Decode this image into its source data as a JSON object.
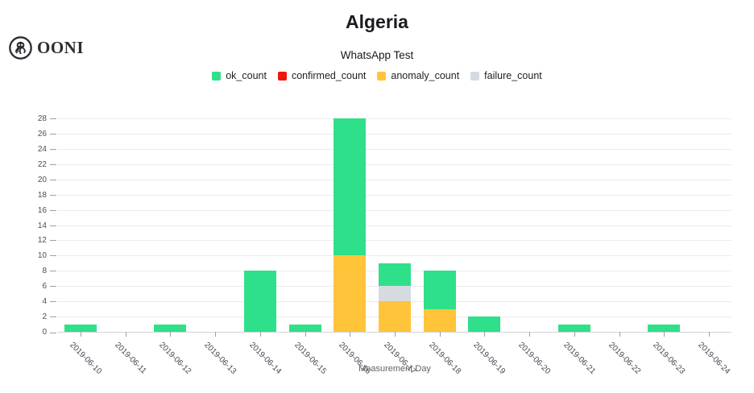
{
  "header": {
    "logo_text": "OONI",
    "title": "Algeria",
    "subtitle": "WhatsApp Test"
  },
  "colors": {
    "ok": "#2fe08a",
    "confirmed": "#f2140d",
    "anomaly": "#ffc43a",
    "failure": "#d6dbe1",
    "gridline": "#ebebeb",
    "axis": "#d3d3d3"
  },
  "legend": [
    {
      "label": "ok_count",
      "color": "#2fe08a"
    },
    {
      "label": "confirmed_count",
      "color": "#f2140d"
    },
    {
      "label": "anomaly_count",
      "color": "#ffc43a"
    },
    {
      "label": "failure_count",
      "color": "#d6dbe1"
    }
  ],
  "chart_data": {
    "type": "bar",
    "stacked": true,
    "title": "Algeria",
    "subtitle": "WhatsApp Test",
    "xlabel": "Measurement Day",
    "ylabel": "",
    "ylim": [
      0,
      28.8
    ],
    "y_ticks": [
      0,
      2,
      4,
      6,
      8,
      10,
      12,
      14,
      16,
      18,
      20,
      22,
      24,
      26,
      28
    ],
    "grid": true,
    "legend_position": "top",
    "categories": [
      "2019-06-10",
      "2019-06-11",
      "2019-06-12",
      "2019-06-13",
      "2019-06-14",
      "2019-06-15",
      "2019-06-16",
      "2019-06-17",
      "2019-06-18",
      "2019-06-19",
      "2019-06-20",
      "2019-06-21",
      "2019-06-22",
      "2019-06-23",
      "2019-06-24"
    ],
    "stack_order_bottom_to_top": [
      "confirmed_count",
      "anomaly_count",
      "failure_count",
      "ok_count"
    ],
    "series": [
      {
        "name": "confirmed_count",
        "color": "#f2140d",
        "values": [
          0,
          0,
          0,
          0,
          0,
          0,
          0,
          0,
          0,
          0,
          0,
          0,
          0,
          0,
          0
        ]
      },
      {
        "name": "anomaly_count",
        "color": "#ffc43a",
        "values": [
          0,
          0,
          0,
          0,
          0,
          0,
          10,
          4,
          3,
          0,
          0,
          0,
          0,
          0,
          0
        ]
      },
      {
        "name": "failure_count",
        "color": "#d6dbe1",
        "values": [
          0,
          0,
          0,
          0,
          0,
          0,
          0,
          2,
          0,
          0,
          0,
          0,
          0,
          0,
          0
        ]
      },
      {
        "name": "ok_count",
        "color": "#2fe08a",
        "values": [
          1,
          0,
          1,
          0,
          8,
          1,
          18,
          3,
          5,
          2,
          0,
          1,
          0,
          1,
          0
        ]
      }
    ],
    "totals": [
      1,
      0,
      1,
      0,
      8,
      1,
      28,
      9,
      8,
      2,
      0,
      1,
      0,
      1,
      0
    ]
  }
}
